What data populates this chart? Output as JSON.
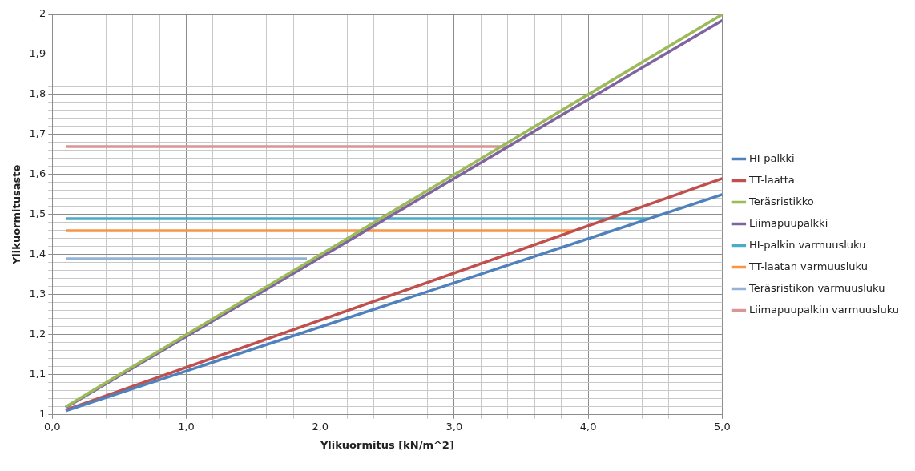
{
  "chart_data": {
    "type": "line",
    "xlabel": "Ylikuormitus [kN/m^2]",
    "ylabel": "Ylikuormitusaste",
    "xlim": [
      0,
      5
    ],
    "ylim": [
      1,
      2
    ],
    "xticks": [
      {
        "value": 0,
        "label": "0,0"
      },
      {
        "value": 0.2,
        "label": null
      },
      {
        "value": 0.4,
        "label": null
      },
      {
        "value": 0.6,
        "label": null
      },
      {
        "value": 0.8,
        "label": null
      },
      {
        "value": 1,
        "label": "1,0"
      },
      {
        "value": 1.2,
        "label": null
      },
      {
        "value": 1.4,
        "label": null
      },
      {
        "value": 1.6,
        "label": null
      },
      {
        "value": 1.8,
        "label": null
      },
      {
        "value": 2,
        "label": "2,0"
      },
      {
        "value": 2.2,
        "label": null
      },
      {
        "value": 2.4,
        "label": null
      },
      {
        "value": 2.6,
        "label": null
      },
      {
        "value": 2.8,
        "label": null
      },
      {
        "value": 3,
        "label": "3,0"
      },
      {
        "value": 3.2,
        "label": null
      },
      {
        "value": 3.4,
        "label": null
      },
      {
        "value": 3.6,
        "label": null
      },
      {
        "value": 3.8,
        "label": null
      },
      {
        "value": 4,
        "label": "4,0"
      },
      {
        "value": 4.2,
        "label": null
      },
      {
        "value": 4.4,
        "label": null
      },
      {
        "value": 4.6,
        "label": null
      },
      {
        "value": 4.8,
        "label": null
      },
      {
        "value": 5,
        "label": "5,0"
      }
    ],
    "yticks": [
      1,
      {
        "value": 1.02,
        "label": null
      },
      {
        "value": 1.04,
        "label": null
      },
      {
        "value": 1.06,
        "label": null
      },
      {
        "value": 1.08,
        "label": null
      },
      {
        "value": 1.1,
        "label": "1,1"
      },
      {
        "value": 1.12,
        "label": null
      },
      {
        "value": 1.14,
        "label": null
      },
      {
        "value": 1.16,
        "label": null
      },
      {
        "value": 1.18,
        "label": null
      },
      {
        "value": 1.2,
        "label": "1,2"
      },
      {
        "value": 1.22,
        "label": null
      },
      {
        "value": 1.24,
        "label": null
      },
      {
        "value": 1.26,
        "label": null
      },
      {
        "value": 1.28,
        "label": null
      },
      {
        "value": 1.3,
        "label": "1,3"
      },
      {
        "value": 1.32,
        "label": null
      },
      {
        "value": 1.34,
        "label": null
      },
      {
        "value": 1.36,
        "label": null
      },
      {
        "value": 1.38,
        "label": null
      },
      {
        "value": 1.4,
        "label": "1,4"
      },
      {
        "value": 1.42,
        "label": null
      },
      {
        "value": 1.44,
        "label": null
      },
      {
        "value": 1.46,
        "label": null
      },
      {
        "value": 1.48,
        "label": null
      },
      {
        "value": 1.5,
        "label": "1,5"
      },
      {
        "value": 1.52,
        "label": null
      },
      {
        "value": 1.54,
        "label": null
      },
      {
        "value": 1.56,
        "label": null
      },
      {
        "value": 1.58,
        "label": null
      },
      {
        "value": 1.6,
        "label": "1,6"
      },
      {
        "value": 1.62,
        "label": null
      },
      {
        "value": 1.64,
        "label": null
      },
      {
        "value": 1.66,
        "label": null
      },
      {
        "value": 1.68,
        "label": null
      },
      {
        "value": 1.7,
        "label": "1,7"
      },
      {
        "value": 1.72,
        "label": null
      },
      {
        "value": 1.74,
        "label": null
      },
      {
        "value": 1.76,
        "label": null
      },
      {
        "value": 1.78,
        "label": null
      },
      {
        "value": 1.8,
        "label": "1,8"
      },
      {
        "value": 1.82,
        "label": null
      },
      {
        "value": 1.84,
        "label": null
      },
      {
        "value": 1.86,
        "label": null
      },
      {
        "value": 1.88,
        "label": null
      },
      {
        "value": 1.9,
        "label": "1,9"
      },
      {
        "value": 1.92,
        "label": null
      },
      {
        "value": 1.94,
        "label": null
      },
      {
        "value": 1.96,
        "label": null
      },
      {
        "value": 1.98,
        "label": null
      },
      2
    ],
    "grid": true,
    "legend": "right",
    "marker": "none",
    "line_style": "solid",
    "series": [
      {
        "name": "HI-palkki",
        "color": "#4f81bd",
        "x": [
          0.1,
          5
        ],
        "values": [
          1.01,
          1.55
        ]
      },
      {
        "name": "TT-laatta",
        "color": "#c0504d",
        "x": [
          0.1,
          5
        ],
        "values": [
          1.012,
          1.59
        ]
      },
      {
        "name": "Teräsristikko",
        "color": "#9bbb59",
        "x": [
          0.1,
          5
        ],
        "values": [
          1.02,
          2.0
        ]
      },
      {
        "name": "Liimapuupalkki",
        "color": "#8064a2",
        "x": [
          0.1,
          5
        ],
        "values": [
          1.018,
          1.985
        ]
      },
      {
        "name": "HI-palkin varmuusluku",
        "color": "#4bacc6",
        "x": [
          0.1,
          4.45
        ],
        "values": [
          1.49,
          1.49
        ]
      },
      {
        "name": "TT-laatan varmuusluku",
        "color": "#f79646",
        "x": [
          0.1,
          3.9
        ],
        "values": [
          1.46,
          1.46
        ]
      },
      {
        "name": "Teräsristikon varmuusluku",
        "color": "#95b3d7",
        "x": [
          0.1,
          1.9
        ],
        "values": [
          1.39,
          1.39
        ]
      },
      {
        "name": "Liimapuupalkin varmuusluku",
        "color": "#d99694",
        "x": [
          0.1,
          3.4
        ],
        "values": [
          1.67,
          1.67
        ]
      }
    ]
  }
}
